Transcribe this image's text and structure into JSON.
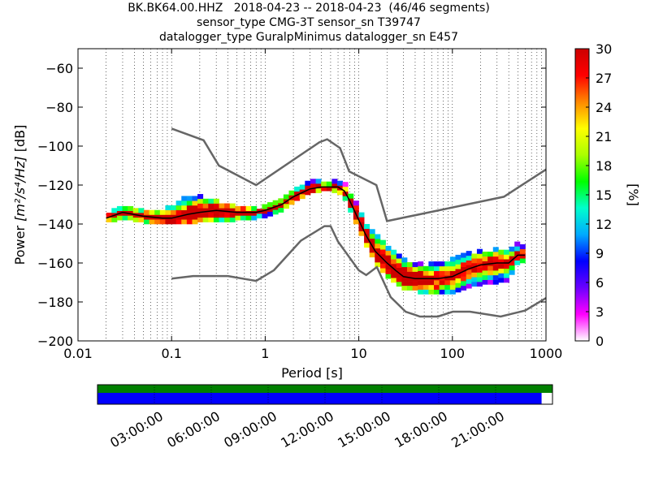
{
  "title": {
    "line1": "BK.BK64.00.HHZ   2018-04-23 -- 2018-04-23  (46/46 segments)",
    "line2": "sensor_type CMG-3T sensor_sn T39747",
    "line3": "datalogger_type GuralpMinimus datalogger_sn E457"
  },
  "chart_data": {
    "type": "heatmap",
    "xlabel": "Period [s]",
    "ylabel_prefix": "Power ",
    "ylabel_math": "[m²/s⁴/Hz]",
    "ylabel_suffix": " [dB]",
    "xscale": "log",
    "xlim": [
      0.01,
      1000
    ],
    "ylim": [
      -200,
      -50
    ],
    "x_ticks": [
      0.01,
      0.1,
      1,
      10,
      100,
      1000
    ],
    "x_tick_labels": [
      "0.01",
      "0.1",
      "1",
      "10",
      "100",
      "1000"
    ],
    "y_ticks": [
      -200,
      -180,
      -160,
      -140,
      -120,
      -100,
      -80,
      -60
    ],
    "y_tick_labels": [
      "−200",
      "−180",
      "−160",
      "−140",
      "−120",
      "−100",
      "−80",
      "−60"
    ],
    "grid": "dotted vertical lines at decade subdivisions",
    "colorbar": {
      "label": "[%]",
      "range": [
        0,
        30
      ],
      "ticks": [
        0,
        3,
        6,
        9,
        12,
        15,
        18,
        21,
        24,
        27,
        30
      ],
      "tick_labels": [
        "0",
        "3",
        "6",
        "9",
        "12",
        "15",
        "18",
        "21",
        "24",
        "27",
        "30"
      ],
      "colors": [
        "#ffffff",
        "#ff00ff",
        "#6a00ff",
        "#0000ff",
        "#00aaff",
        "#00ffcc",
        "#00ff00",
        "#aaff00",
        "#ffff00",
        "#ff8800",
        "#ff0000",
        "#cc0000"
      ]
    },
    "model_curves": {
      "color": "#666666",
      "high_noise_model": [
        [
          0.1,
          -91
        ],
        [
          0.22,
          -97
        ],
        [
          0.32,
          -110
        ],
        [
          0.8,
          -120
        ],
        [
          3.8,
          -98
        ],
        [
          4.6,
          -96.5
        ],
        [
          6.3,
          -101
        ],
        [
          7.9,
          -113
        ],
        [
          15.4,
          -120
        ],
        [
          20,
          -138.5
        ],
        [
          354.8,
          -126
        ],
        [
          1000,
          -112
        ]
      ],
      "low_noise_model": [
        [
          0.1,
          -168
        ],
        [
          0.17,
          -166.7
        ],
        [
          0.4,
          -166.7
        ],
        [
          0.8,
          -169.2
        ],
        [
          1.24,
          -163.7
        ],
        [
          2.4,
          -148.6
        ],
        [
          4.3,
          -141.1
        ],
        [
          5,
          -141.1
        ],
        [
          6,
          -149
        ],
        [
          10,
          -163.8
        ],
        [
          12,
          -166.2
        ],
        [
          15.6,
          -162.1
        ],
        [
          21.9,
          -177.5
        ],
        [
          31.6,
          -185
        ],
        [
          45,
          -187.5
        ],
        [
          70,
          -187.5
        ],
        [
          101,
          -185
        ],
        [
          154,
          -185
        ],
        [
          328,
          -187.5
        ],
        [
          600,
          -184.4
        ],
        [
          1000,
          -178
        ]
      ]
    },
    "mean_curve": {
      "x": [
        0.02,
        0.03,
        0.05,
        0.08,
        0.1,
        0.15,
        0.2,
        0.3,
        0.5,
        0.8,
        1,
        1.5,
        2,
        3,
        4,
        5,
        6,
        7,
        8,
        10,
        12,
        15,
        20,
        25,
        30,
        40,
        50,
        70,
        100,
        150,
        200,
        300,
        400,
        500,
        600
      ],
      "y": [
        -137,
        -134,
        -136,
        -137,
        -137,
        -135,
        -134,
        -133,
        -134,
        -134,
        -133,
        -130,
        -126,
        -122,
        -121,
        -121,
        -121,
        -123,
        -128,
        -138,
        -146,
        -154,
        -160,
        -164,
        -167,
        -168,
        -168,
        -168,
        -167,
        -163,
        -161,
        -160,
        -160,
        -156,
        -156
      ]
    },
    "density_band": {
      "description": "2D histogram of PSD probability, plotted as colored cells",
      "x": [
        0.02,
        0.03,
        0.05,
        0.08,
        0.1,
        0.15,
        0.2,
        0.3,
        0.5,
        0.8,
        1,
        1.5,
        2,
        3,
        4,
        5,
        6,
        7,
        8,
        10,
        12,
        15,
        20,
        25,
        30,
        40,
        50,
        70,
        100,
        150,
        200,
        300,
        400,
        500,
        600
      ],
      "upper": [
        -135,
        -132,
        -133,
        -133,
        -131,
        -127,
        -126,
        -129,
        -131,
        -133,
        -132,
        -128,
        -123,
        -119,
        -119,
        -119,
        -119,
        -120,
        -124,
        -132,
        -140,
        -146,
        -152,
        -156,
        -159,
        -161,
        -162,
        -160,
        -159,
        -156,
        -155,
        -154,
        -155,
        -151,
        -151
      ],
      "lower": [
        -139,
        -137,
        -139,
        -140,
        -140,
        -140,
        -139,
        -139,
        -138,
        -137,
        -136,
        -133,
        -129,
        -124,
        -123,
        -123,
        -124,
        -126,
        -132,
        -143,
        -151,
        -160,
        -167,
        -171,
        -173,
        -174,
        -176,
        -175,
        -176,
        -172,
        -171,
        -170,
        -169,
        -160,
        -160
      ]
    }
  },
  "timeline": {
    "tick_labels": [
      "03:00:00",
      "06:00:00",
      "09:00:00",
      "12:00:00",
      "15:00:00",
      "18:00:00",
      "21:00:00"
    ],
    "tick_hours": [
      3,
      6,
      9,
      12,
      15,
      18,
      21
    ],
    "range_hours": [
      0,
      24
    ],
    "data_coverage_fraction": 1.0,
    "segment_coverage_fraction": 0.976,
    "data_color": "#008000",
    "segment_color": "#0000ff"
  }
}
